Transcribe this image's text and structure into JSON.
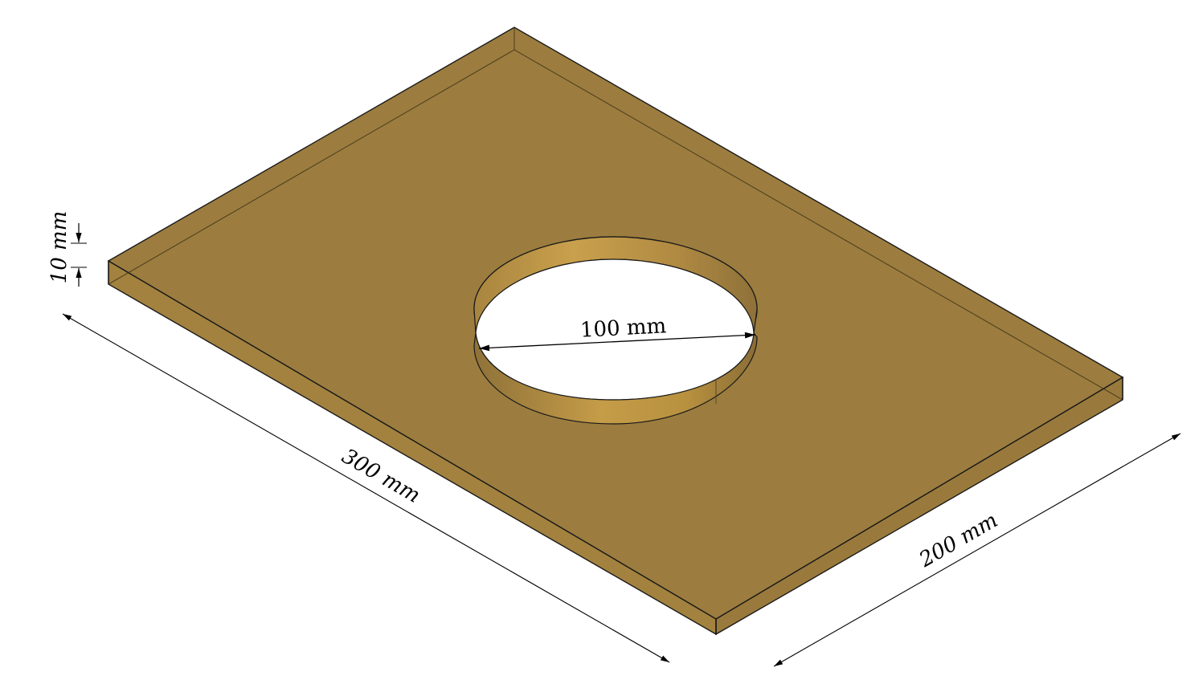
{
  "dimensions": {
    "length_label": "300 mm",
    "width_label": "200 mm",
    "thickness_label": "10 mm",
    "hole_diameter_label": "100 mm"
  },
  "colors": {
    "plate_top": "#9c7d3f",
    "plate_side": "#b08c45",
    "hole_wall_light": "#c49b48",
    "hole_wall_dark": "#8d7038",
    "edge_line": "#1a1a1a",
    "dimension_line": "#000000"
  }
}
